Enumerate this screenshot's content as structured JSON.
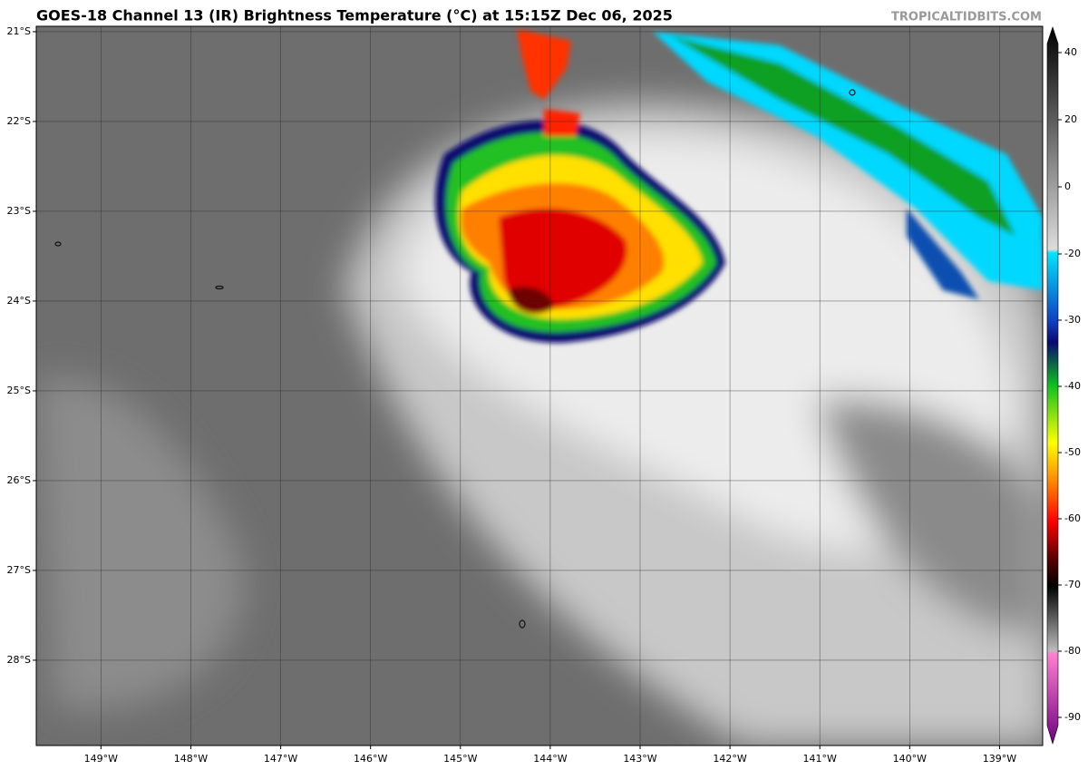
{
  "title": "GOES-18 Channel 13 (IR) Brightness Temperature (°C) at 15:15Z Dec 06, 2025",
  "watermark": "TROPICALTIDBITS.COM",
  "map": {
    "xlim": [
      -149.72,
      -138.52
    ],
    "ylim": [
      -28.95,
      -20.94
    ],
    "xticks": [
      {
        "value": -149,
        "label": "149°W"
      },
      {
        "value": -148,
        "label": "148°W"
      },
      {
        "value": -147,
        "label": "147°W"
      },
      {
        "value": -146,
        "label": "146°W"
      },
      {
        "value": -145,
        "label": "145°W"
      },
      {
        "value": -144,
        "label": "144°W"
      },
      {
        "value": -143,
        "label": "143°W"
      },
      {
        "value": -142,
        "label": "142°W"
      },
      {
        "value": -141,
        "label": "141°W"
      },
      {
        "value": -140,
        "label": "140°W"
      },
      {
        "value": -139,
        "label": "139°W"
      }
    ],
    "yticks": [
      {
        "value": -21,
        "label": "21°S"
      },
      {
        "value": -22,
        "label": "22°S"
      },
      {
        "value": -23,
        "label": "23°S"
      },
      {
        "value": -24,
        "label": "24°S"
      },
      {
        "value": -25,
        "label": "25°S"
      },
      {
        "value": -26,
        "label": "26°S"
      },
      {
        "value": -27,
        "label": "27°S"
      },
      {
        "value": -28,
        "label": "28°S"
      }
    ],
    "grid": true
  },
  "colorbar": {
    "ticks": [
      40,
      20,
      0,
      -20,
      -30,
      -40,
      -50,
      -60,
      -70,
      -80,
      -90
    ]
  }
}
